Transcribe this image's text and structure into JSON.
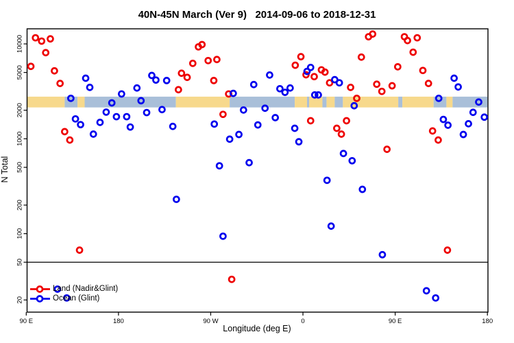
{
  "title": "40N-45N March (Ver 9)   2014-09-06 to 2018-12-31",
  "chart_data": {
    "type": "scatter",
    "title": "40N-45N March (Ver 9)   2014-09-06 to 2018-12-31",
    "xlabel": "Longitude (deg E)",
    "ylabel": "N Total",
    "x_axis": {
      "min": 90,
      "max": 540,
      "ticks": [
        {
          "value": 90,
          "label": "90 E"
        },
        {
          "value": 180,
          "label": "180"
        },
        {
          "value": 270,
          "label": "90 W"
        },
        {
          "value": 360,
          "label": "0"
        },
        {
          "value": 450,
          "label": "90 E"
        },
        {
          "value": 540,
          "label": "180"
        }
      ]
    },
    "y_axis": {
      "scale": "log",
      "min": 15,
      "max": 14400,
      "ticks": [
        20,
        50,
        100,
        200,
        500,
        1000,
        2000,
        5000,
        10000
      ]
    },
    "reference_line_y": 50,
    "grid": "off",
    "legend_position": "bottom-left",
    "legend": [
      {
        "label": "Land (Nadir&Glint)",
        "color": "#ee0000"
      },
      {
        "label": "Ocean (Glint)",
        "color": "#0000ee"
      }
    ],
    "map_band": {
      "description": "land/ocean strip for 40N-45N drawn across plot",
      "value_top": 2780,
      "value_bottom": 2140,
      "land_color": "#f7d98c",
      "ocean_color": "#a9bfd9",
      "segments": [
        {
          "from": 90,
          "to": 127.5,
          "type": "land"
        },
        {
          "from": 127.5,
          "to": 140,
          "type": "ocean"
        },
        {
          "from": 140,
          "to": 147,
          "type": "land"
        },
        {
          "from": 147,
          "to": 236,
          "type": "ocean"
        },
        {
          "from": 236,
          "to": 288.5,
          "type": "land"
        },
        {
          "from": 288.5,
          "to": 352,
          "type": "ocean"
        },
        {
          "from": 352,
          "to": 364,
          "type": "land"
        },
        {
          "from": 364,
          "to": 366,
          "type": "ocean"
        },
        {
          "from": 366,
          "to": 379,
          "type": "land"
        },
        {
          "from": 379,
          "to": 383,
          "type": "ocean"
        },
        {
          "from": 383,
          "to": 391,
          "type": "land"
        },
        {
          "from": 391,
          "to": 399,
          "type": "ocean"
        },
        {
          "from": 399,
          "to": 453,
          "type": "land"
        },
        {
          "from": 453,
          "to": 457,
          "type": "ocean"
        },
        {
          "from": 457,
          "to": 487.5,
          "type": "land"
        },
        {
          "from": 487.5,
          "to": 500,
          "type": "ocean"
        },
        {
          "from": 500,
          "to": 506,
          "type": "land"
        },
        {
          "from": 506,
          "to": 540,
          "type": "ocean"
        }
      ]
    },
    "series": [
      {
        "name": "Land (Nadir&Glint)",
        "color": "#ee0000",
        "marker": "open-circle",
        "points": [
          [
            94.5,
            5800
          ],
          [
            99,
            11600
          ],
          [
            105,
            10700
          ],
          [
            109,
            8090
          ],
          [
            113.5,
            11300
          ],
          [
            117.5,
            5200
          ],
          [
            123,
            3830
          ],
          [
            127.5,
            1190
          ],
          [
            132.5,
            970
          ],
          [
            142,
            67
          ],
          [
            238.5,
            3290
          ],
          [
            241.5,
            4910
          ],
          [
            247,
            4440
          ],
          [
            252.5,
            6240
          ],
          [
            258,
            9310
          ],
          [
            261.5,
            9840
          ],
          [
            267.5,
            6670
          ],
          [
            273,
            4110
          ],
          [
            276,
            6850
          ],
          [
            282,
            1810
          ],
          [
            287.5,
            2970
          ],
          [
            290.5,
            33
          ],
          [
            352.5,
            5960
          ],
          [
            358,
            7330
          ],
          [
            363,
            4730
          ],
          [
            367.5,
            1550
          ],
          [
            371,
            4520
          ],
          [
            378,
            5330
          ],
          [
            381.5,
            5040
          ],
          [
            386,
            3890
          ],
          [
            393,
            1290
          ],
          [
            397.5,
            1120
          ],
          [
            402.5,
            1550
          ],
          [
            406.5,
            3480
          ],
          [
            412.5,
            2670
          ],
          [
            417,
            7260
          ],
          [
            424,
            11900
          ],
          [
            428,
            12700
          ],
          [
            432,
            3760
          ],
          [
            437,
            3160
          ],
          [
            442,
            775
          ],
          [
            447,
            3620
          ],
          [
            452.5,
            5740
          ],
          [
            459,
            11900
          ],
          [
            462,
            10850
          ],
          [
            467.5,
            8180
          ],
          [
            471.5,
            11600
          ],
          [
            477,
            5250
          ],
          [
            482.5,
            3830
          ],
          [
            486.5,
            1210
          ],
          [
            492,
            970
          ],
          [
            501,
            67
          ]
        ]
      },
      {
        "name": "Ocean (Glint)",
        "color": "#0000ee",
        "marker": "open-circle",
        "points": [
          [
            120.5,
            26
          ],
          [
            129.5,
            21
          ],
          [
            133.5,
            2670
          ],
          [
            138,
            1620
          ],
          [
            143,
            1410
          ],
          [
            148,
            4350
          ],
          [
            152,
            3480
          ],
          [
            155.5,
            1120
          ],
          [
            162,
            1490
          ],
          [
            168,
            1910
          ],
          [
            173.5,
            2390
          ],
          [
            178,
            1710
          ],
          [
            183,
            2970
          ],
          [
            188,
            1710
          ],
          [
            191.5,
            1330
          ],
          [
            198,
            3430
          ],
          [
            202,
            2520
          ],
          [
            207.5,
            1890
          ],
          [
            212.5,
            4650
          ],
          [
            216.5,
            4160
          ],
          [
            222.5,
            2030
          ],
          [
            227,
            4110
          ],
          [
            233,
            1350
          ],
          [
            236.5,
            230
          ],
          [
            273.5,
            1430
          ],
          [
            278.5,
            519
          ],
          [
            282,
            94
          ],
          [
            288.5,
            990
          ],
          [
            292,
            3010
          ],
          [
            297.5,
            1110
          ],
          [
            302,
            2010
          ],
          [
            307.5,
            560
          ],
          [
            312,
            3730
          ],
          [
            316,
            1400
          ],
          [
            323,
            2100
          ],
          [
            327.5,
            4700
          ],
          [
            333,
            1670
          ],
          [
            337.5,
            3370
          ],
          [
            342.5,
            3090
          ],
          [
            347.5,
            3430
          ],
          [
            352,
            1290
          ],
          [
            356,
            930
          ],
          [
            364,
            5130
          ],
          [
            367.5,
            5650
          ],
          [
            371.5,
            2900
          ],
          [
            375,
            2900
          ],
          [
            383.5,
            365
          ],
          [
            387.5,
            120
          ],
          [
            391,
            4200
          ],
          [
            395.5,
            3890
          ],
          [
            399.5,
            700
          ],
          [
            408,
            587
          ],
          [
            410,
            2230
          ],
          [
            418,
            293
          ],
          [
            437.5,
            60
          ],
          [
            480.5,
            25
          ],
          [
            489.5,
            21
          ],
          [
            492.5,
            2670
          ],
          [
            497,
            1600
          ],
          [
            501.5,
            1390
          ],
          [
            507.5,
            4350
          ],
          [
            511.5,
            3520
          ],
          [
            516.5,
            1110
          ],
          [
            521.5,
            1440
          ],
          [
            526,
            1900
          ],
          [
            531.5,
            2440
          ],
          [
            537,
            1690
          ]
        ]
      }
    ]
  }
}
